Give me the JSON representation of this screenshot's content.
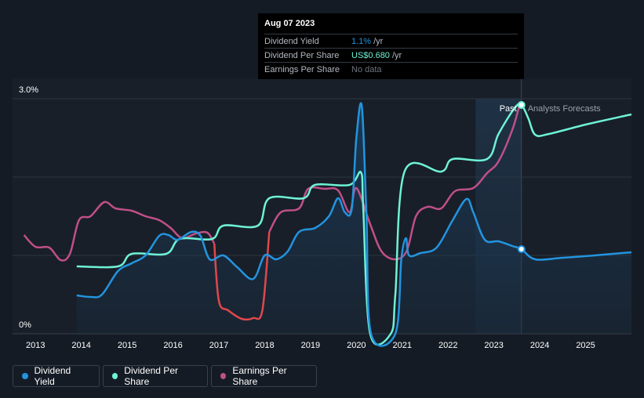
{
  "tooltip": {
    "date": "Aug 07 2023",
    "rows": [
      {
        "label": "Dividend Yield",
        "value": "1.1%",
        "unit": "/yr"
      },
      {
        "label": "Dividend Per Share",
        "value": "US$0.680",
        "unit": "/yr"
      },
      {
        "label": "Earnings Per Share",
        "value": "No data",
        "unit": ""
      }
    ]
  },
  "labels": {
    "past": "Past",
    "forecast": "Analysts Forecasts"
  },
  "legend": [
    {
      "label": "Dividend Yield",
      "color": "#2394df"
    },
    {
      "label": "Dividend Per Share",
      "color": "#6ff2d6"
    },
    {
      "label": "Earnings Per Share",
      "color": "#c04f88"
    }
  ],
  "chart_data": {
    "type": "line",
    "y_range": [
      0,
      3.0
    ],
    "y_tick_labels": [
      "3.0%",
      "0%"
    ],
    "x_range": [
      2012.5,
      2026.0
    ],
    "x_ticks": [
      2013,
      2014,
      2015,
      2016,
      2017,
      2018,
      2019,
      2020,
      2021,
      2022,
      2023,
      2024,
      2025
    ],
    "forecast_start": 2022.6,
    "current_x": 2023.6,
    "grid": true,
    "colors": {
      "yield": "#2394df",
      "dps": "#6ff2d6",
      "eps": "#c04f88",
      "eps_negative": "#e0474c"
    },
    "series": [
      {
        "name": "Dividend Yield",
        "key": "yield",
        "area": true,
        "points": [
          [
            2013.9,
            0.49
          ],
          [
            2014.2,
            0.47
          ],
          [
            2014.45,
            0.5
          ],
          [
            2014.8,
            0.8
          ],
          [
            2015.1,
            0.9
          ],
          [
            2015.4,
            1.0
          ],
          [
            2015.7,
            1.25
          ],
          [
            2015.9,
            1.26
          ],
          [
            2016.1,
            1.2
          ],
          [
            2016.4,
            1.3
          ],
          [
            2016.6,
            1.25
          ],
          [
            2016.8,
            0.95
          ],
          [
            2017.1,
            1.0
          ],
          [
            2017.4,
            0.85
          ],
          [
            2017.75,
            0.7
          ],
          [
            2018.0,
            1.0
          ],
          [
            2018.25,
            0.95
          ],
          [
            2018.5,
            1.05
          ],
          [
            2018.75,
            1.3
          ],
          [
            2019.1,
            1.35
          ],
          [
            2019.4,
            1.5
          ],
          [
            2019.6,
            1.73
          ],
          [
            2019.75,
            1.55
          ],
          [
            2019.9,
            1.6
          ],
          [
            2020.0,
            2.5
          ],
          [
            2020.12,
            2.9
          ],
          [
            2020.22,
            1.5
          ],
          [
            2020.32,
            0.0
          ],
          [
            2020.85,
            0.0
          ],
          [
            2020.98,
            0.95
          ],
          [
            2021.08,
            1.22
          ],
          [
            2021.15,
            1.0
          ],
          [
            2021.4,
            1.03
          ],
          [
            2021.75,
            1.1
          ],
          [
            2022.1,
            1.45
          ],
          [
            2022.4,
            1.72
          ],
          [
            2022.55,
            1.55
          ],
          [
            2022.8,
            1.2
          ],
          [
            2023.1,
            1.18
          ],
          [
            2023.4,
            1.12
          ],
          [
            2023.6,
            1.08
          ],
          [
            2023.9,
            0.95
          ],
          [
            2024.5,
            0.97
          ],
          [
            2025.2,
            1.0
          ],
          [
            2026.0,
            1.04
          ]
        ]
      },
      {
        "name": "Dividend Per Share",
        "key": "dps",
        "area": false,
        "points": [
          [
            2013.9,
            0.86
          ],
          [
            2014.8,
            0.86
          ],
          [
            2015.1,
            1.02
          ],
          [
            2015.85,
            1.02
          ],
          [
            2016.15,
            1.21
          ],
          [
            2016.85,
            1.21
          ],
          [
            2017.1,
            1.38
          ],
          [
            2017.85,
            1.38
          ],
          [
            2018.1,
            1.73
          ],
          [
            2018.85,
            1.73
          ],
          [
            2019.1,
            1.9
          ],
          [
            2019.85,
            1.9
          ],
          [
            2020.1,
            2.06
          ],
          [
            2020.15,
            1.6
          ],
          [
            2020.3,
            0.0
          ],
          [
            2020.75,
            0.0
          ],
          [
            2020.85,
            0.5
          ],
          [
            2021.05,
            2.07
          ],
          [
            2021.85,
            2.07
          ],
          [
            2022.1,
            2.23
          ],
          [
            2022.85,
            2.23
          ],
          [
            2023.1,
            2.55
          ],
          [
            2023.45,
            2.88
          ],
          [
            2023.6,
            2.92
          ],
          [
            2023.75,
            2.75
          ],
          [
            2023.9,
            2.54
          ],
          [
            2024.2,
            2.55
          ],
          [
            2025.0,
            2.67
          ],
          [
            2026.0,
            2.8
          ]
        ]
      },
      {
        "name": "Earnings Per Share",
        "key": "eps",
        "area": false,
        "points": [
          [
            2012.75,
            1.26
          ],
          [
            2013.0,
            1.11
          ],
          [
            2013.3,
            1.1
          ],
          [
            2013.55,
            0.94
          ],
          [
            2013.75,
            1.02
          ],
          [
            2013.95,
            1.45
          ],
          [
            2014.2,
            1.5
          ],
          [
            2014.5,
            1.68
          ],
          [
            2014.75,
            1.6
          ],
          [
            2015.1,
            1.57
          ],
          [
            2015.4,
            1.5
          ],
          [
            2015.7,
            1.45
          ],
          [
            2015.95,
            1.35
          ],
          [
            2016.2,
            1.22
          ],
          [
            2016.5,
            1.28
          ],
          [
            2016.75,
            1.29
          ],
          [
            2016.9,
            1.15
          ],
          [
            2017.0,
            0.42
          ],
          [
            2017.2,
            0.3
          ],
          [
            2017.5,
            0.19
          ],
          [
            2017.75,
            0.2
          ],
          [
            2017.95,
            0.3
          ],
          [
            2018.1,
            1.3
          ],
          [
            2018.35,
            1.55
          ],
          [
            2018.75,
            1.6
          ],
          [
            2018.95,
            1.85
          ],
          [
            2019.3,
            1.85
          ],
          [
            2019.6,
            1.83
          ],
          [
            2019.85,
            1.55
          ],
          [
            2020.0,
            1.86
          ],
          [
            2020.3,
            1.4
          ],
          [
            2020.55,
            1.05
          ],
          [
            2020.85,
            0.95
          ],
          [
            2021.1,
            1.06
          ],
          [
            2021.3,
            1.5
          ],
          [
            2021.55,
            1.62
          ],
          [
            2021.85,
            1.6
          ],
          [
            2022.15,
            1.82
          ],
          [
            2022.55,
            1.86
          ],
          [
            2022.85,
            2.05
          ],
          [
            2023.1,
            2.2
          ],
          [
            2023.4,
            2.6
          ],
          [
            2023.55,
            2.9
          ]
        ]
      }
    ]
  }
}
